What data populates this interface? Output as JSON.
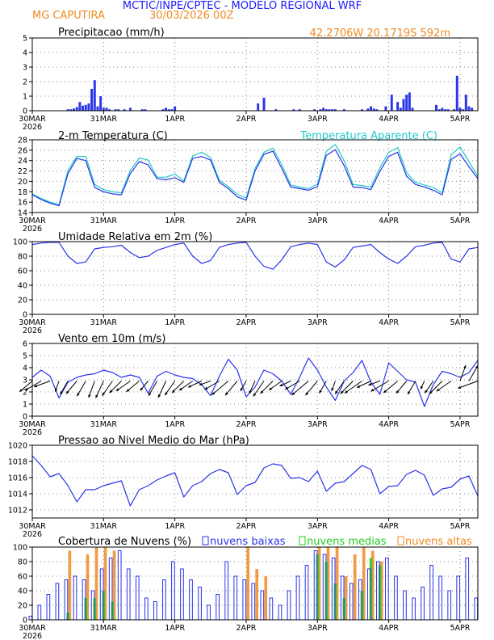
{
  "header": {
    "title": "MCTIC/INPE/CPTEC - MODELO REGIONAL WRF",
    "station": "MG CAPUTIRA",
    "run": "30/03/2026 00Z",
    "coords": "42.2706W 20.1719S 592m"
  },
  "colors": {
    "blue": "#2a35e8",
    "cyan": "#20c8c8",
    "orange": "#f08a24",
    "green": "#22cc22",
    "header_blue": "#1a1aff"
  },
  "x_axis": {
    "day_labels": [
      "30MAR",
      "31MAR",
      "1APR",
      "2APR",
      "3APR",
      "4APR",
      "5APR"
    ],
    "year_label": "2026",
    "x_range_hours": [
      0,
      150
    ]
  },
  "chart_data": [
    {
      "type": "bar",
      "title": "Precipitacao (mm/h)",
      "ylim": [
        0,
        5
      ],
      "yticks": [
        0,
        1,
        2,
        3,
        4,
        5
      ],
      "bar_width_hours": 0.8,
      "x": [
        12,
        13,
        14,
        15,
        16,
        17,
        18,
        19,
        20,
        21,
        22,
        23,
        24,
        25,
        26,
        28,
        29,
        31,
        33,
        37,
        38,
        44,
        45,
        46,
        47,
        48,
        76,
        78,
        82,
        88,
        90,
        95,
        97,
        98,
        99,
        100,
        101,
        102,
        105,
        111,
        113,
        114,
        115,
        116,
        119,
        121,
        123,
        124,
        125,
        126,
        127,
        128,
        136,
        137,
        138,
        139,
        140,
        142,
        143,
        144,
        145,
        146,
        147,
        148
      ],
      "values": [
        0.1,
        0.1,
        0.15,
        0.25,
        0.6,
        0.35,
        0.4,
        0.5,
        1.5,
        2.1,
        0.3,
        1.0,
        0.2,
        0.2,
        0.1,
        0.1,
        0.1,
        0.1,
        0.2,
        0.1,
        0.1,
        0.1,
        0.2,
        0.1,
        0.1,
        0.3,
        0.5,
        0.9,
        0.1,
        0.1,
        0.1,
        0.1,
        0.1,
        0.2,
        0.1,
        0.1,
        0.1,
        0.1,
        0.1,
        0.1,
        0.15,
        0.3,
        0.15,
        0.1,
        0.3,
        1.1,
        0.6,
        0.2,
        0.8,
        1.1,
        1.25,
        0.2,
        0.4,
        0.1,
        0.2,
        0.1,
        0.1,
        0.1,
        2.4,
        0.2,
        0.1,
        1.1,
        0.3,
        0.2
      ]
    },
    {
      "type": "line",
      "title": "2-m Temperatura (C)",
      "legend": "Temperatura Aparente (C)",
      "ylim": [
        14,
        28
      ],
      "yticks": [
        14,
        16,
        18,
        20,
        22,
        24,
        26,
        28
      ],
      "x": [
        0,
        3,
        6,
        9,
        12,
        15,
        18,
        21,
        24,
        27,
        30,
        33,
        36,
        39,
        42,
        45,
        48,
        51,
        54,
        57,
        60,
        63,
        66,
        69,
        72,
        75,
        78,
        81,
        84,
        87,
        90,
        93,
        96,
        99,
        102,
        105,
        108,
        111,
        114,
        117,
        120,
        123,
        126,
        129,
        132,
        135,
        138,
        141,
        144,
        147,
        150
      ],
      "series": [
        {
          "name": "2-m Temperatura (C)",
          "values": [
            17.4,
            16.5,
            15.8,
            15.3,
            21.5,
            24.4,
            24.0,
            18.8,
            18.0,
            17.6,
            17.4,
            21.5,
            23.8,
            23.2,
            20.5,
            20.3,
            20.7,
            19.8,
            24.4,
            24.8,
            24.1,
            19.8,
            18.6,
            17.0,
            16.4,
            22.0,
            25.2,
            25.8,
            22.5,
            18.9,
            18.6,
            18.3,
            19.0,
            25.0,
            26.1,
            23.0,
            18.9,
            18.8,
            18.4,
            21.9,
            24.8,
            25.6,
            21.0,
            19.4,
            18.9,
            18.3,
            17.4,
            24.2,
            25.3,
            22.8,
            20.5
          ]
        },
        {
          "name": "Temperatura Aparente (C)",
          "values": [
            17.6,
            16.7,
            16.0,
            15.5,
            22.1,
            24.8,
            24.8,
            19.4,
            18.4,
            18.0,
            17.8,
            22.1,
            24.5,
            24.1,
            20.8,
            20.8,
            21.4,
            20.1,
            24.9,
            25.6,
            24.6,
            20.2,
            19.0,
            17.5,
            16.8,
            22.5,
            25.6,
            26.4,
            23.2,
            19.3,
            18.9,
            18.6,
            19.5,
            25.8,
            27.1,
            24.0,
            19.4,
            19.2,
            18.9,
            22.6,
            25.6,
            26.5,
            21.7,
            19.8,
            19.3,
            18.8,
            17.8,
            25.1,
            26.6,
            23.8,
            20.9
          ]
        }
      ]
    },
    {
      "type": "line",
      "title": "Umidade Relativa em 2m (%)",
      "ylim": [
        0,
        100
      ],
      "yticks": [
        0,
        20,
        40,
        60,
        80,
        100
      ],
      "x": [
        0,
        3,
        6,
        9,
        12,
        15,
        18,
        21,
        24,
        27,
        30,
        33,
        36,
        39,
        42,
        45,
        48,
        51,
        54,
        57,
        60,
        63,
        66,
        69,
        72,
        75,
        78,
        81,
        84,
        87,
        90,
        93,
        96,
        99,
        102,
        105,
        108,
        111,
        114,
        117,
        120,
        123,
        126,
        129,
        132,
        135,
        138,
        141,
        144,
        147,
        150
      ],
      "values": [
        96,
        98,
        99,
        99,
        80,
        70,
        72,
        90,
        92,
        93,
        95,
        85,
        78,
        80,
        88,
        92,
        96,
        98,
        80,
        70,
        74,
        92,
        96,
        98,
        99,
        80,
        66,
        62,
        75,
        93,
        96,
        98,
        96,
        72,
        65,
        75,
        92,
        94,
        96,
        85,
        76,
        70,
        80,
        93,
        95,
        98,
        99,
        76,
        72,
        90,
        92
      ]
    },
    {
      "type": "line",
      "title": "Vento em 10m (m/s)",
      "ylim": [
        0,
        6
      ],
      "yticks": [
        0,
        1,
        2,
        3,
        4,
        5,
        6
      ],
      "x": [
        0,
        3,
        6,
        9,
        12,
        15,
        18,
        21,
        24,
        27,
        30,
        33,
        36,
        39,
        42,
        45,
        48,
        51,
        54,
        57,
        60,
        63,
        66,
        69,
        72,
        75,
        78,
        81,
        84,
        87,
        90,
        93,
        96,
        99,
        102,
        105,
        108,
        111,
        114,
        117,
        120,
        123,
        126,
        129,
        132,
        135,
        138,
        141,
        144,
        147,
        150
      ],
      "values": [
        3.2,
        3.8,
        3.3,
        1.5,
        2.8,
        3.2,
        3.4,
        3.5,
        3.8,
        3.6,
        3.2,
        3.4,
        3.2,
        1.9,
        3.3,
        3.7,
        3.4,
        3.2,
        3.1,
        2.6,
        1.7,
        3.3,
        4.7,
        3.8,
        1.6,
        2.4,
        3.8,
        3.5,
        2.9,
        1.8,
        3.2,
        4.8,
        3.8,
        2.4,
        1.3,
        2.9,
        3.6,
        4.6,
        2.8,
        1.8,
        4.4,
        3.7,
        3.0,
        2.8,
        0.8,
        2.6,
        3.7,
        3.5,
        3.2,
        3.6,
        4.6
      ],
      "barb_directions_deg": [
        230,
        240,
        250,
        200,
        210,
        220,
        210,
        200,
        205,
        215,
        225,
        235,
        230,
        220,
        210,
        205,
        215,
        225,
        235,
        245,
        250,
        240,
        230,
        220,
        210,
        205,
        215,
        225,
        235,
        245,
        240,
        230,
        220,
        210,
        200,
        215,
        225,
        235,
        245,
        250,
        240,
        230,
        220,
        210,
        205,
        215,
        225,
        235,
        20,
        30,
        250
      ]
    },
    {
      "type": "line",
      "title": "Pressao ao Nivel Medio do Mar (hPa)",
      "ylim": [
        1011,
        1020
      ],
      "yticks": [
        1012,
        1014,
        1016,
        1018,
        1020
      ],
      "x": [
        0,
        3,
        6,
        9,
        12,
        15,
        18,
        21,
        24,
        27,
        30,
        33,
        36,
        39,
        42,
        45,
        48,
        51,
        54,
        57,
        60,
        63,
        66,
        69,
        72,
        75,
        78,
        81,
        84,
        87,
        90,
        93,
        96,
        99,
        102,
        105,
        108,
        111,
        114,
        117,
        120,
        123,
        126,
        129,
        132,
        135,
        138,
        141,
        144,
        147,
        150
      ],
      "values": [
        1018.7,
        1017.5,
        1016.1,
        1016.5,
        1015.0,
        1013.0,
        1014.5,
        1014.5,
        1015.0,
        1015.3,
        1015.6,
        1012.5,
        1014.5,
        1015.0,
        1015.7,
        1016.2,
        1016.6,
        1013.6,
        1015.0,
        1015.5,
        1016.5,
        1017.0,
        1016.6,
        1013.9,
        1015.0,
        1015.4,
        1017.2,
        1017.7,
        1017.5,
        1015.9,
        1016.0,
        1015.5,
        1016.8,
        1014.3,
        1015.3,
        1015.5,
        1016.5,
        1017.5,
        1017.0,
        1014.0,
        1014.9,
        1015.0,
        1016.4,
        1016.9,
        1016.3,
        1013.8,
        1014.6,
        1014.8,
        1015.8,
        1016.2,
        1013.7
      ]
    },
    {
      "type": "bar",
      "title": "Cobertura de Nuvens (%)",
      "legend": [
        "nuvens baixas",
        "nuvens medias",
        "nuvens altas"
      ],
      "ylim": [
        0,
        100
      ],
      "yticks": [
        0,
        20,
        40,
        60,
        80,
        100
      ],
      "x": [
        0,
        3,
        6,
        9,
        12,
        15,
        18,
        21,
        24,
        27,
        30,
        33,
        36,
        39,
        42,
        45,
        48,
        51,
        54,
        57,
        60,
        63,
        66,
        69,
        72,
        75,
        78,
        81,
        84,
        87,
        90,
        93,
        96,
        99,
        102,
        105,
        108,
        111,
        114,
        117,
        120,
        123,
        126,
        129,
        132,
        135,
        138,
        141,
        144,
        147,
        150
      ],
      "series": [
        {
          "name": "nuvens baixas",
          "values": [
            5,
            20,
            35,
            50,
            55,
            60,
            55,
            40,
            70,
            85,
            95,
            70,
            60,
            30,
            25,
            55,
            80,
            70,
            55,
            45,
            20,
            35,
            80,
            60,
            55,
            50,
            40,
            30,
            20,
            40,
            60,
            75,
            95,
            90,
            85,
            60,
            50,
            55,
            70,
            80,
            85,
            60,
            40,
            30,
            45,
            75,
            60,
            40,
            60,
            85,
            30
          ]
        },
        {
          "name": "nuvens medias",
          "values": [
            0,
            0,
            0,
            0,
            10,
            0,
            30,
            30,
            40,
            25,
            0,
            0,
            0,
            0,
            0,
            0,
            0,
            0,
            0,
            0,
            0,
            0,
            0,
            0,
            0,
            0,
            0,
            0,
            0,
            0,
            0,
            0,
            90,
            80,
            50,
            30,
            0,
            40,
            85,
            75,
            0,
            0,
            0,
            0,
            0,
            0,
            0,
            0,
            0,
            0,
            0
          ]
        },
        {
          "name": "nuvens altas",
          "values": [
            0,
            0,
            0,
            0,
            95,
            0,
            90,
            100,
            100,
            95,
            0,
            0,
            0,
            0,
            0,
            0,
            0,
            0,
            0,
            0,
            0,
            0,
            0,
            0,
            100,
            70,
            60,
            0,
            0,
            0,
            0,
            0,
            100,
            100,
            100,
            60,
            90,
            100,
            95,
            80,
            0,
            0,
            0,
            0,
            0,
            0,
            0,
            0,
            0,
            0,
            0
          ]
        }
      ]
    }
  ]
}
